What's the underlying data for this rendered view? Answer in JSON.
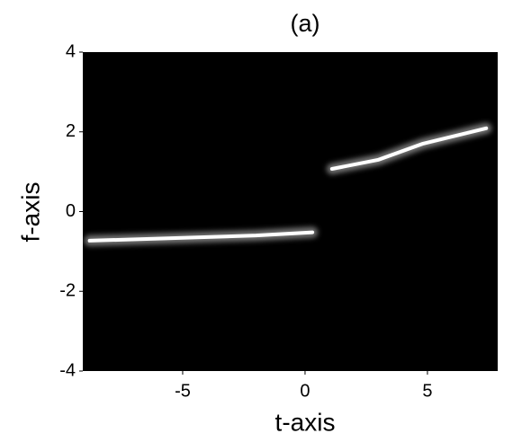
{
  "chart_data": {
    "type": "line",
    "title": "(a)",
    "x_label": "t-axis",
    "y_label": "f-axis",
    "x": [
      -8.8,
      -5,
      -2,
      0.3,
      0.8,
      1.1,
      3,
      4.8,
      7.4
    ],
    "series": [
      {
        "color": "#ffffff",
        "values": [
          -0.73,
          -0.66,
          -0.6,
          -0.52,
          null,
          1.07,
          1.3,
          1.7,
          2.09
        ]
      }
    ],
    "background": "#000000",
    "xlim": [
      -9.08,
      7.87
    ],
    "xticks": [
      -5,
      0,
      5
    ],
    "ylim": [
      -4,
      4
    ],
    "yticks": [
      -4,
      -2,
      0,
      2,
      4
    ],
    "grid": false
  }
}
